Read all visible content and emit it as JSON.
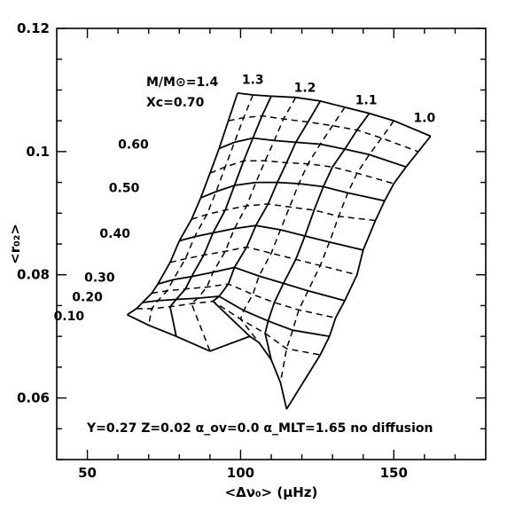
{
  "chart_data": {
    "type": "line",
    "xlabel": "<Δν₀> (μHz)",
    "ylabel": "<r₀₂>",
    "xlim": [
      40,
      180
    ],
    "ylim": [
      0.05,
      0.12
    ],
    "xticks": [
      {
        "value": 50,
        "label": "50"
      },
      {
        "value": 100,
        "label": "100"
      },
      {
        "value": 150,
        "label": "150"
      }
    ],
    "yticks": [
      {
        "value": 0.06,
        "label": "0.06"
      },
      {
        "value": 0.08,
        "label": "0.08"
      },
      {
        "value": 0.1,
        "label": "0.1"
      },
      {
        "value": 0.12,
        "label": "0.12"
      }
    ],
    "grid": false,
    "footnote": "Y=0.27 Z=0.02 α_ov=0.0 α_MLT=1.65 no diffusion",
    "mass_header": "M/M⊙=1.4",
    "xc_header": "Xc=0.70",
    "masses": [
      "1.4",
      "1.35",
      "1.3",
      "1.25",
      "1.2",
      "1.15",
      "1.1",
      "1.05",
      "1.0"
    ],
    "mass_labels": [
      {
        "text": "1.3",
        "x": 104,
        "y": 0.111
      },
      {
        "text": "1.2",
        "x": 121,
        "y": 0.1097
      },
      {
        "text": "1.1",
        "x": 141,
        "y": 0.1077
      },
      {
        "text": "1.0",
        "x": 160,
        "y": 0.1048
      }
    ],
    "xc_labels": [
      {
        "text": "0.60",
        "x": 70,
        "y": 0.1005
      },
      {
        "text": "0.50",
        "x": 67,
        "y": 0.0934
      },
      {
        "text": "0.40",
        "x": 64,
        "y": 0.086
      },
      {
        "text": "0.30",
        "x": 59,
        "y": 0.0789
      },
      {
        "text": "0.20",
        "x": 55,
        "y": 0.0757
      },
      {
        "text": "0.10",
        "x": 49,
        "y": 0.0726
      }
    ],
    "isochrones": [
      {
        "Xc": 0.7,
        "style": "solid",
        "points": [
          [
            99,
            0.1095
          ],
          [
            104,
            0.1092
          ],
          [
            110,
            0.109
          ],
          [
            118,
            0.1088
          ],
          [
            126,
            0.1082
          ],
          [
            134,
            0.1072
          ],
          [
            142,
            0.1062
          ],
          [
            150,
            0.105
          ],
          [
            162,
            0.1025
          ]
        ]
      },
      {
        "Xc": 0.65,
        "style": "dashed",
        "points": [
          [
            96,
            0.105
          ],
          [
            101,
            0.1055
          ],
          [
            107,
            0.1058
          ],
          [
            114,
            0.1053
          ],
          [
            122,
            0.1048
          ],
          [
            130,
            0.1042
          ],
          [
            138,
            0.1035
          ],
          [
            146,
            0.1022
          ],
          [
            158,
            0.1
          ]
        ]
      },
      {
        "Xc": 0.6,
        "style": "solid",
        "points": [
          [
            93,
            0.1005
          ],
          [
            98,
            0.1015
          ],
          [
            104,
            0.1022
          ],
          [
            111,
            0.1018
          ],
          [
            118,
            0.1015
          ],
          [
            126,
            0.1012
          ],
          [
            134,
            0.1004
          ],
          [
            142,
            0.0995
          ],
          [
            154,
            0.0975
          ]
        ]
      },
      {
        "Xc": 0.55,
        "style": "dashed",
        "points": [
          [
            90,
            0.0965
          ],
          [
            95,
            0.0975
          ],
          [
            101,
            0.0985
          ],
          [
            108,
            0.0985
          ],
          [
            115,
            0.0982
          ],
          [
            122,
            0.098
          ],
          [
            130,
            0.0975
          ],
          [
            138,
            0.0965
          ],
          [
            150,
            0.0948
          ]
        ]
      },
      {
        "Xc": 0.5,
        "style": "solid",
        "points": [
          [
            87,
            0.0925
          ],
          [
            92,
            0.0935
          ],
          [
            98,
            0.0945
          ],
          [
            105,
            0.095
          ],
          [
            112,
            0.095
          ],
          [
            119,
            0.0948
          ],
          [
            127,
            0.0943
          ],
          [
            135,
            0.0933
          ],
          [
            147,
            0.092
          ]
        ]
      },
      {
        "Xc": 0.45,
        "style": "dashed",
        "points": [
          [
            84,
            0.089
          ],
          [
            89,
            0.0898
          ],
          [
            95,
            0.0905
          ],
          [
            102,
            0.0912
          ],
          [
            109,
            0.0915
          ],
          [
            116,
            0.091
          ],
          [
            124,
            0.0905
          ],
          [
            132,
            0.0895
          ],
          [
            144,
            0.0888
          ]
        ]
      },
      {
        "Xc": 0.4,
        "style": "solid",
        "points": [
          [
            80,
            0.0855
          ],
          [
            85,
            0.0862
          ],
          [
            91,
            0.0868
          ],
          [
            98,
            0.0875
          ],
          [
            105,
            0.088
          ],
          [
            113,
            0.0873
          ],
          [
            121,
            0.0863
          ],
          [
            129,
            0.0853
          ],
          [
            140,
            0.084
          ]
        ]
      },
      {
        "Xc": 0.35,
        "style": "dashed",
        "points": [
          [
            77,
            0.082
          ],
          [
            82,
            0.0826
          ],
          [
            88,
            0.0832
          ],
          [
            95,
            0.0838
          ],
          [
            102,
            0.0845
          ],
          [
            110,
            0.0835
          ],
          [
            118,
            0.0825
          ],
          [
            126,
            0.0815
          ],
          [
            138,
            0.08
          ]
        ]
      },
      {
        "Xc": 0.3,
        "style": "solid",
        "points": [
          [
            73,
            0.0785
          ],
          [
            78,
            0.0792
          ],
          [
            84,
            0.0797
          ],
          [
            91,
            0.0804
          ],
          [
            98,
            0.0812
          ],
          [
            106,
            0.0798
          ],
          [
            114,
            0.0786
          ],
          [
            122,
            0.0774
          ],
          [
            134,
            0.0758
          ]
        ]
      },
      {
        "Xc": 0.25,
        "style": "dashed",
        "points": [
          [
            71,
            0.077
          ],
          [
            76,
            0.0774
          ],
          [
            82,
            0.0777
          ],
          [
            89,
            0.078
          ],
          [
            96,
            0.0785
          ],
          [
            104,
            0.0768
          ],
          [
            111,
            0.0755
          ],
          [
            119,
            0.0743
          ],
          [
            131,
            0.073
          ]
        ]
      },
      {
        "Xc": 0.2,
        "style": "solid",
        "points": [
          [
            68,
            0.0755
          ],
          [
            73,
            0.0758
          ],
          [
            79,
            0.076
          ],
          [
            86,
            0.0762
          ],
          [
            93,
            0.0765
          ],
          [
            101,
            0.0742
          ],
          [
            109,
            0.0725
          ],
          [
            117,
            0.071
          ],
          [
            129,
            0.07
          ]
        ]
      },
      {
        "Xc": 0.15,
        "style": "dashed",
        "points": [
          [
            66,
            0.0745
          ],
          [
            71,
            0.0745
          ],
          [
            77,
            0.0748
          ],
          [
            84,
            0.0753
          ],
          [
            91,
            0.0757
          ],
          [
            100,
            0.0728
          ],
          [
            108,
            0.0705
          ],
          [
            115,
            0.068
          ],
          [
            126,
            0.067
          ]
        ]
      },
      {
        "Xc": 0.1,
        "style": "solid",
        "points": [
          [
            63,
            0.0735
          ],
          [
            70,
            0.0718
          ],
          [
            79,
            0.07
          ],
          [
            90,
            0.0676
          ],
          [
            103,
            0.07
          ],
          [
            106,
            0.069
          ],
          [
            110,
            0.0662
          ],
          [
            113,
            0.0625
          ],
          [
            115,
            0.0582
          ]
        ]
      }
    ]
  }
}
